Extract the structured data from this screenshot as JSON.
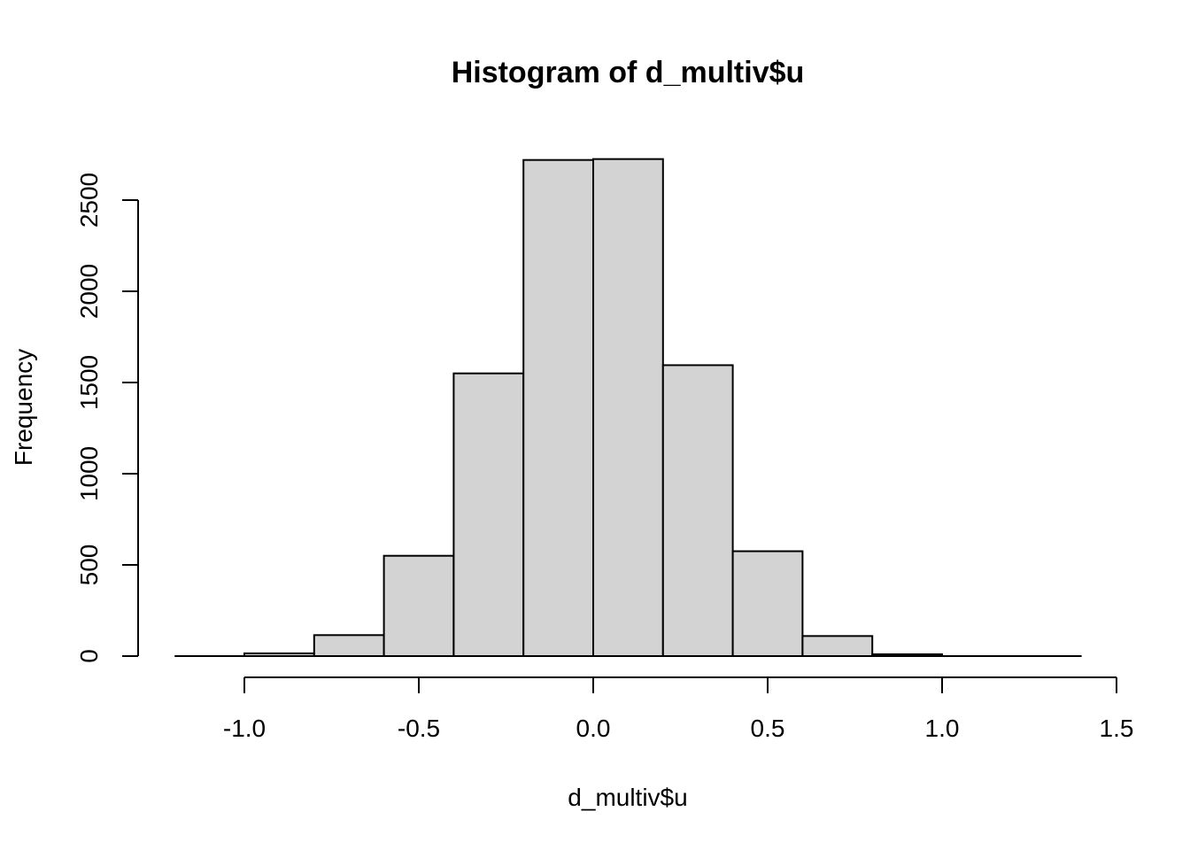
{
  "chart_data": {
    "type": "bar",
    "title": "Histogram of d_multiv$u",
    "xlabel": "d_multiv$u",
    "ylabel": "Frequency",
    "bin_edges": [
      -1.0,
      -0.8,
      -0.6,
      -0.4,
      -0.2,
      0.0,
      0.2,
      0.4,
      0.6,
      0.8,
      1.0
    ],
    "values": [
      15,
      115,
      550,
      1550,
      2720,
      2725,
      1595,
      575,
      110,
      10
    ],
    "x_ticks": [
      -1.0,
      -0.5,
      0.0,
      0.5,
      1.0,
      1.5
    ],
    "x_tick_labels": [
      "-1.0",
      "-0.5",
      "0.0",
      "0.5",
      "1.0",
      "1.5"
    ],
    "y_ticks": [
      0,
      500,
      1000,
      1500,
      2000,
      2500
    ],
    "y_tick_labels": [
      "0",
      "500",
      "1000",
      "1500",
      "2000",
      "2500"
    ],
    "xlim": [
      -1.2,
      1.4
    ],
    "ylim": [
      0,
      2750
    ],
    "bar_fill": "#d3d3d3",
    "grid": false
  }
}
